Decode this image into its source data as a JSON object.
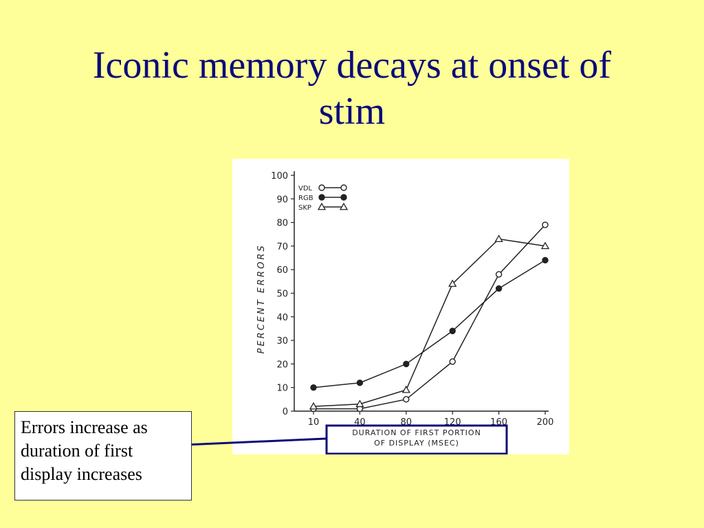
{
  "slide": {
    "title": "Iconic memory decays at onset of stim",
    "title_lines": [
      "Iconic memory decays at onset of",
      "stim"
    ],
    "callout_lines": [
      "Errors increase as",
      "duration of first",
      "display increases"
    ],
    "colors": {
      "background": "#ffff99",
      "title": "#0b0b7a",
      "highlight_box": "#0b0b7a"
    }
  },
  "chart_data": {
    "type": "line",
    "title": "",
    "xlabel_lines": [
      "DURATION OF FIRST PORTION",
      "OF DISPLAY (MSEC)"
    ],
    "ylabel": "PERCENT ERRORS",
    "categories": [
      "10",
      "40",
      "80",
      "120",
      "160",
      "200"
    ],
    "y_ticks": [
      "0",
      "10",
      "20",
      "30",
      "40",
      "50",
      "60",
      "70",
      "80",
      "90",
      "100"
    ],
    "ylim": [
      0,
      100
    ],
    "grid": false,
    "legend_position": "top-left",
    "series": [
      {
        "name": "VDL",
        "marker": "open-circle",
        "values": [
          1,
          1,
          5,
          21,
          58,
          79
        ]
      },
      {
        "name": "RGB",
        "marker": "filled-circle",
        "values": [
          10,
          12,
          20,
          34,
          52,
          64
        ]
      },
      {
        "name": "SKP",
        "marker": "open-triangle",
        "values": [
          2,
          3,
          9,
          54,
          73,
          70
        ]
      }
    ]
  }
}
